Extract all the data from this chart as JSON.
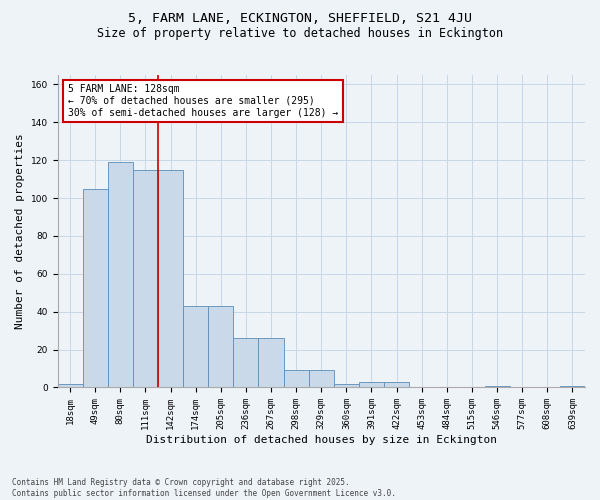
{
  "title_line1": "5, FARM LANE, ECKINGTON, SHEFFIELD, S21 4JU",
  "title_line2": "Size of property relative to detached houses in Eckington",
  "xlabel": "Distribution of detached houses by size in Eckington",
  "ylabel": "Number of detached properties",
  "categories": [
    "18sqm",
    "49sqm",
    "80sqm",
    "111sqm",
    "142sqm",
    "174sqm",
    "205sqm",
    "236sqm",
    "267sqm",
    "298sqm",
    "329sqm",
    "360sqm",
    "391sqm",
    "422sqm",
    "453sqm",
    "484sqm",
    "515sqm",
    "546sqm",
    "577sqm",
    "608sqm",
    "639sqm"
  ],
  "values": [
    2,
    105,
    119,
    115,
    115,
    43,
    43,
    26,
    26,
    9,
    9,
    2,
    3,
    3,
    0,
    0,
    0,
    1,
    0,
    0,
    1
  ],
  "bar_color": "#c9d9ea",
  "bar_edge_color": "#5b8db8",
  "grid_color": "#c8d8e8",
  "bg_color": "#eef3f8",
  "red_line_x": 3.5,
  "annotation_text": "5 FARM LANE: 128sqm\n← 70% of detached houses are smaller (295)\n30% of semi-detached houses are larger (128) →",
  "annotation_box_color": "#ffffff",
  "annotation_box_edge": "#cc0000",
  "footnote1": "Contains HM Land Registry data © Crown copyright and database right 2025.",
  "footnote2": "Contains public sector information licensed under the Open Government Licence v3.0.",
  "ylim": [
    0,
    165
  ],
  "title_fontsize": 9.5,
  "subtitle_fontsize": 8.5,
  "tick_fontsize": 6.5,
  "ylabel_fontsize": 8,
  "xlabel_fontsize": 8,
  "annot_fontsize": 7,
  "footnote_fontsize": 5.5
}
